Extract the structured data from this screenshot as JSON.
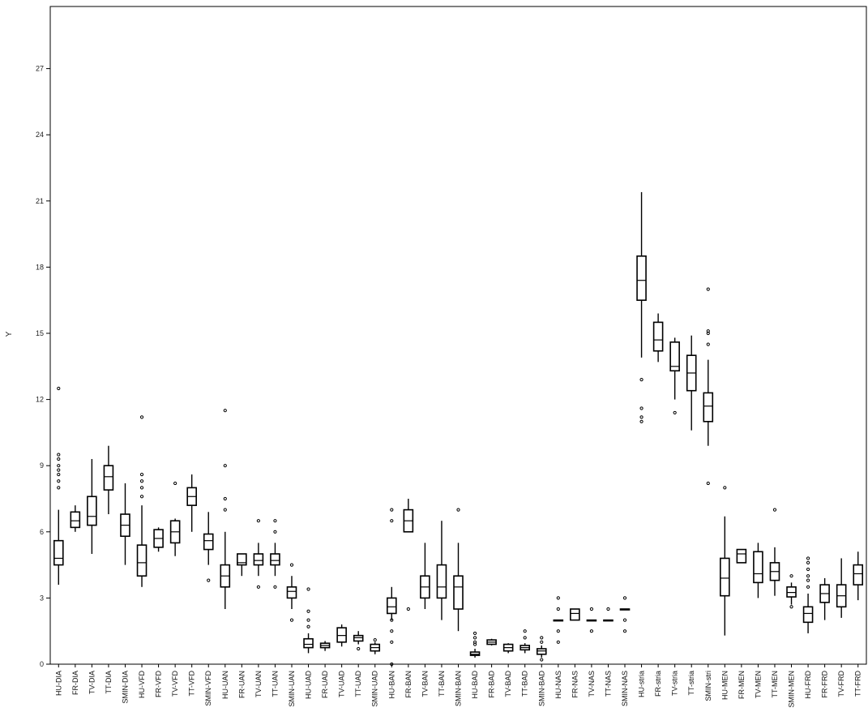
{
  "chart_data": {
    "type": "boxplot",
    "ylabel": "Y",
    "xlabel": "",
    "ylim": [
      0,
      30
    ],
    "yticks": [
      0,
      3,
      6,
      9,
      12,
      15,
      18,
      21,
      24,
      27
    ],
    "ytick_labels": [
      "0",
      "3",
      "6",
      "9",
      "12",
      "15",
      "18",
      "21",
      "24",
      "27"
    ],
    "grid": false,
    "box_color": "#000000",
    "boxes": [
      {
        "label": "HU-DIA",
        "whisker_low": 3.6,
        "q1": 4.5,
        "median": 4.8,
        "q3": 5.6,
        "whisker_high": 7.0,
        "outliers": [
          8.0,
          8.3,
          8.6,
          8.8,
          9.0,
          9.3,
          9.5,
          12.5
        ]
      },
      {
        "label": "FR-DIA",
        "whisker_low": 6.0,
        "q1": 6.2,
        "median": 6.5,
        "q3": 6.9,
        "whisker_high": 7.2,
        "outliers": []
      },
      {
        "label": "TV-DIA",
        "whisker_low": 5.0,
        "q1": 6.3,
        "median": 6.7,
        "q3": 7.6,
        "whisker_high": 9.3,
        "outliers": []
      },
      {
        "label": "TT-DIA",
        "whisker_low": 6.8,
        "q1": 7.9,
        "median": 8.5,
        "q3": 9.0,
        "whisker_high": 9.9,
        "outliers": []
      },
      {
        "label": "SMIN-DIA",
        "whisker_low": 4.5,
        "q1": 5.8,
        "median": 6.3,
        "q3": 6.8,
        "whisker_high": 8.2,
        "outliers": []
      },
      {
        "label": "HU-VFD",
        "whisker_low": 3.5,
        "q1": 4.0,
        "median": 4.6,
        "q3": 5.4,
        "whisker_high": 7.2,
        "outliers": [
          7.6,
          8.0,
          8.3,
          8.6,
          11.2
        ]
      },
      {
        "label": "FR-VFD",
        "whisker_low": 5.1,
        "q1": 5.3,
        "median": 5.7,
        "q3": 6.1,
        "whisker_high": 6.2,
        "outliers": []
      },
      {
        "label": "TV-VFD",
        "whisker_low": 4.9,
        "q1": 5.5,
        "median": 6.0,
        "q3": 6.5,
        "whisker_high": 6.6,
        "outliers": [
          8.2
        ]
      },
      {
        "label": "TT-VFD",
        "whisker_low": 6.0,
        "q1": 7.2,
        "median": 7.6,
        "q3": 8.0,
        "whisker_high": 8.6,
        "outliers": []
      },
      {
        "label": "SMIN-VFD",
        "whisker_low": 4.5,
        "q1": 5.2,
        "median": 5.6,
        "q3": 5.9,
        "whisker_high": 6.9,
        "outliers": [
          3.8
        ]
      },
      {
        "label": "HU-UAN",
        "whisker_low": 2.5,
        "q1": 3.5,
        "median": 4.0,
        "q3": 4.5,
        "whisker_high": 6.0,
        "outliers": [
          7.0,
          7.5,
          9.0,
          11.5
        ]
      },
      {
        "label": "FR-UAN",
        "whisker_low": 4.0,
        "q1": 4.5,
        "median": 4.6,
        "q3": 5.0,
        "whisker_high": 5.0,
        "outliers": []
      },
      {
        "label": "TV-UAN",
        "whisker_low": 4.0,
        "q1": 4.5,
        "median": 4.7,
        "q3": 5.0,
        "whisker_high": 5.5,
        "outliers": [
          3.5,
          6.5
        ]
      },
      {
        "label": "TT-UAN",
        "whisker_low": 4.0,
        "q1": 4.5,
        "median": 4.7,
        "q3": 5.0,
        "whisker_high": 5.5,
        "outliers": [
          3.5,
          6.0,
          6.5
        ]
      },
      {
        "label": "SMIN-UAN",
        "whisker_low": 2.5,
        "q1": 3.0,
        "median": 3.3,
        "q3": 3.5,
        "whisker_high": 4.0,
        "outliers": [
          2.0,
          4.5
        ]
      },
      {
        "label": "HU-UAD",
        "whisker_low": 0.5,
        "q1": 0.75,
        "median": 0.9,
        "q3": 1.15,
        "whisker_high": 1.4,
        "outliers": [
          1.7,
          2.0,
          2.4,
          3.4
        ]
      },
      {
        "label": "FR-UAD",
        "whisker_low": 0.6,
        "q1": 0.75,
        "median": 0.85,
        "q3": 0.95,
        "whisker_high": 1.05,
        "outliers": []
      },
      {
        "label": "TV-UAD",
        "whisker_low": 0.8,
        "q1": 1.0,
        "median": 1.3,
        "q3": 1.65,
        "whisker_high": 1.8,
        "outliers": []
      },
      {
        "label": "TT-UAD",
        "whisker_low": 0.9,
        "q1": 1.05,
        "median": 1.2,
        "q3": 1.3,
        "whisker_high": 1.5,
        "outliers": [
          0.7
        ]
      },
      {
        "label": "SMIN-UAD",
        "whisker_low": 0.45,
        "q1": 0.6,
        "median": 0.75,
        "q3": 0.9,
        "whisker_high": 1.0,
        "outliers": [
          1.1
        ]
      },
      {
        "label": "HU-BAN",
        "whisker_low": 2.0,
        "q1": 2.3,
        "median": 2.6,
        "q3": 3.0,
        "whisker_high": 3.5,
        "outliers": [
          0.0,
          1.0,
          1.5,
          2.0,
          6.5,
          7.0
        ]
      },
      {
        "label": "FR-BAN",
        "whisker_low": 6.0,
        "q1": 6.0,
        "median": 6.5,
        "q3": 7.0,
        "whisker_high": 7.5,
        "outliers": [
          2.5
        ]
      },
      {
        "label": "TV-BAN",
        "whisker_low": 2.5,
        "q1": 3.0,
        "median": 3.5,
        "q3": 4.0,
        "whisker_high": 5.5,
        "outliers": []
      },
      {
        "label": "TT-BAN",
        "whisker_low": 2.0,
        "q1": 3.0,
        "median": 3.5,
        "q3": 4.5,
        "whisker_high": 6.5,
        "outliers": []
      },
      {
        "label": "SMIN-BAN",
        "whisker_low": 1.5,
        "q1": 2.5,
        "median": 3.5,
        "q3": 4.0,
        "whisker_high": 5.5,
        "outliers": [
          7.0
        ]
      },
      {
        "label": "HU-BAD",
        "whisker_low": 0.3,
        "q1": 0.4,
        "median": 0.45,
        "q3": 0.55,
        "whisker_high": 0.7,
        "outliers": [
          0.9,
          1.0,
          1.2,
          1.4
        ]
      },
      {
        "label": "FR-BAD",
        "whisker_low": 0.85,
        "q1": 0.9,
        "median": 1.0,
        "q3": 1.1,
        "whisker_high": 1.15,
        "outliers": []
      },
      {
        "label": "TV-BAD",
        "whisker_low": 0.5,
        "q1": 0.6,
        "median": 0.75,
        "q3": 0.9,
        "whisker_high": 0.95,
        "outliers": []
      },
      {
        "label": "TT-BAD",
        "whisker_low": 0.5,
        "q1": 0.65,
        "median": 0.75,
        "q3": 0.85,
        "whisker_high": 0.95,
        "outliers": [
          1.2,
          1.5
        ]
      },
      {
        "label": "SMIN-BAD",
        "whisker_low": 0.3,
        "q1": 0.45,
        "median": 0.6,
        "q3": 0.7,
        "whisker_high": 0.85,
        "outliers": [
          0.2,
          1.0,
          1.2
        ]
      },
      {
        "label": "HU-NAS",
        "whisker_low": 2.0,
        "q1": 2.0,
        "median": 2.0,
        "q3": 2.0,
        "whisker_high": 2.0,
        "outliers": [
          1.0,
          1.5,
          2.5,
          3.0
        ]
      },
      {
        "label": "FR-NAS",
        "whisker_low": 2.0,
        "q1": 2.0,
        "median": 2.3,
        "q3": 2.5,
        "whisker_high": 2.5,
        "outliers": []
      },
      {
        "label": "TV-NAS",
        "whisker_low": 2.0,
        "q1": 2.0,
        "median": 2.0,
        "q3": 2.0,
        "whisker_high": 2.0,
        "outliers": [
          1.5,
          2.5
        ]
      },
      {
        "label": "TT-NAS",
        "whisker_low": 2.0,
        "q1": 2.0,
        "median": 2.0,
        "q3": 2.0,
        "whisker_high": 2.0,
        "outliers": [
          2.5
        ]
      },
      {
        "label": "SMIN-NAS",
        "whisker_low": 2.5,
        "q1": 2.5,
        "median": 2.5,
        "q3": 2.5,
        "whisker_high": 2.5,
        "outliers": [
          1.5,
          2.0,
          3.0
        ]
      },
      {
        "label": "HU-stria",
        "whisker_low": 13.9,
        "q1": 16.5,
        "median": 17.4,
        "q3": 18.5,
        "whisker_high": 21.4,
        "outliers": [
          11.0,
          11.2,
          11.6,
          12.9
        ]
      },
      {
        "label": "FR-stria",
        "whisker_low": 13.7,
        "q1": 14.2,
        "median": 14.7,
        "q3": 15.5,
        "whisker_high": 15.9,
        "outliers": []
      },
      {
        "label": "TV-stria",
        "whisker_low": 12.0,
        "q1": 13.3,
        "median": 13.5,
        "q3": 14.6,
        "whisker_high": 14.8,
        "outliers": [
          11.4
        ]
      },
      {
        "label": "TT-stria",
        "whisker_low": 10.6,
        "q1": 12.4,
        "median": 13.2,
        "q3": 14.0,
        "whisker_high": 14.9,
        "outliers": []
      },
      {
        "label": "SMIN-stri",
        "whisker_low": 9.9,
        "q1": 11.0,
        "median": 11.7,
        "q3": 12.3,
        "whisker_high": 13.8,
        "outliers": [
          8.2,
          14.5,
          15.0,
          15.1,
          17.0
        ]
      },
      {
        "label": "HU-MEN",
        "whisker_low": 1.3,
        "q1": 3.1,
        "median": 3.9,
        "q3": 4.8,
        "whisker_high": 6.7,
        "outliers": [
          8.0
        ]
      },
      {
        "label": "FR-MEN",
        "whisker_low": 4.6,
        "q1": 4.6,
        "median": 5.0,
        "q3": 5.2,
        "whisker_high": 5.2,
        "outliers": []
      },
      {
        "label": "TV-MEN",
        "whisker_low": 3.0,
        "q1": 3.7,
        "median": 4.1,
        "q3": 5.1,
        "whisker_high": 5.5,
        "outliers": []
      },
      {
        "label": "TT-MEN",
        "whisker_low": 3.1,
        "q1": 3.8,
        "median": 4.2,
        "q3": 4.6,
        "whisker_high": 5.3,
        "outliers": [
          7.0
        ]
      },
      {
        "label": "SMIN-MEN",
        "whisker_low": 2.7,
        "q1": 3.05,
        "median": 3.25,
        "q3": 3.5,
        "whisker_high": 3.7,
        "outliers": [
          2.6,
          4.0
        ]
      },
      {
        "label": "HU-FRD",
        "whisker_low": 1.4,
        "q1": 1.9,
        "median": 2.3,
        "q3": 2.6,
        "whisker_high": 3.2,
        "outliers": [
          3.5,
          3.8,
          4.0,
          4.3,
          4.6,
          4.8
        ]
      },
      {
        "label": "FR-FRD",
        "whisker_low": 2.0,
        "q1": 2.8,
        "median": 3.2,
        "q3": 3.6,
        "whisker_high": 3.9,
        "outliers": []
      },
      {
        "label": "TV-FRD",
        "whisker_low": 2.1,
        "q1": 2.6,
        "median": 3.1,
        "q3": 3.6,
        "whisker_high": 4.8,
        "outliers": []
      },
      {
        "label": "TT-FRD",
        "whisker_low": 2.9,
        "q1": 3.6,
        "median": 4.1,
        "q3": 4.5,
        "whisker_high": 5.1,
        "outliers": []
      }
    ]
  }
}
